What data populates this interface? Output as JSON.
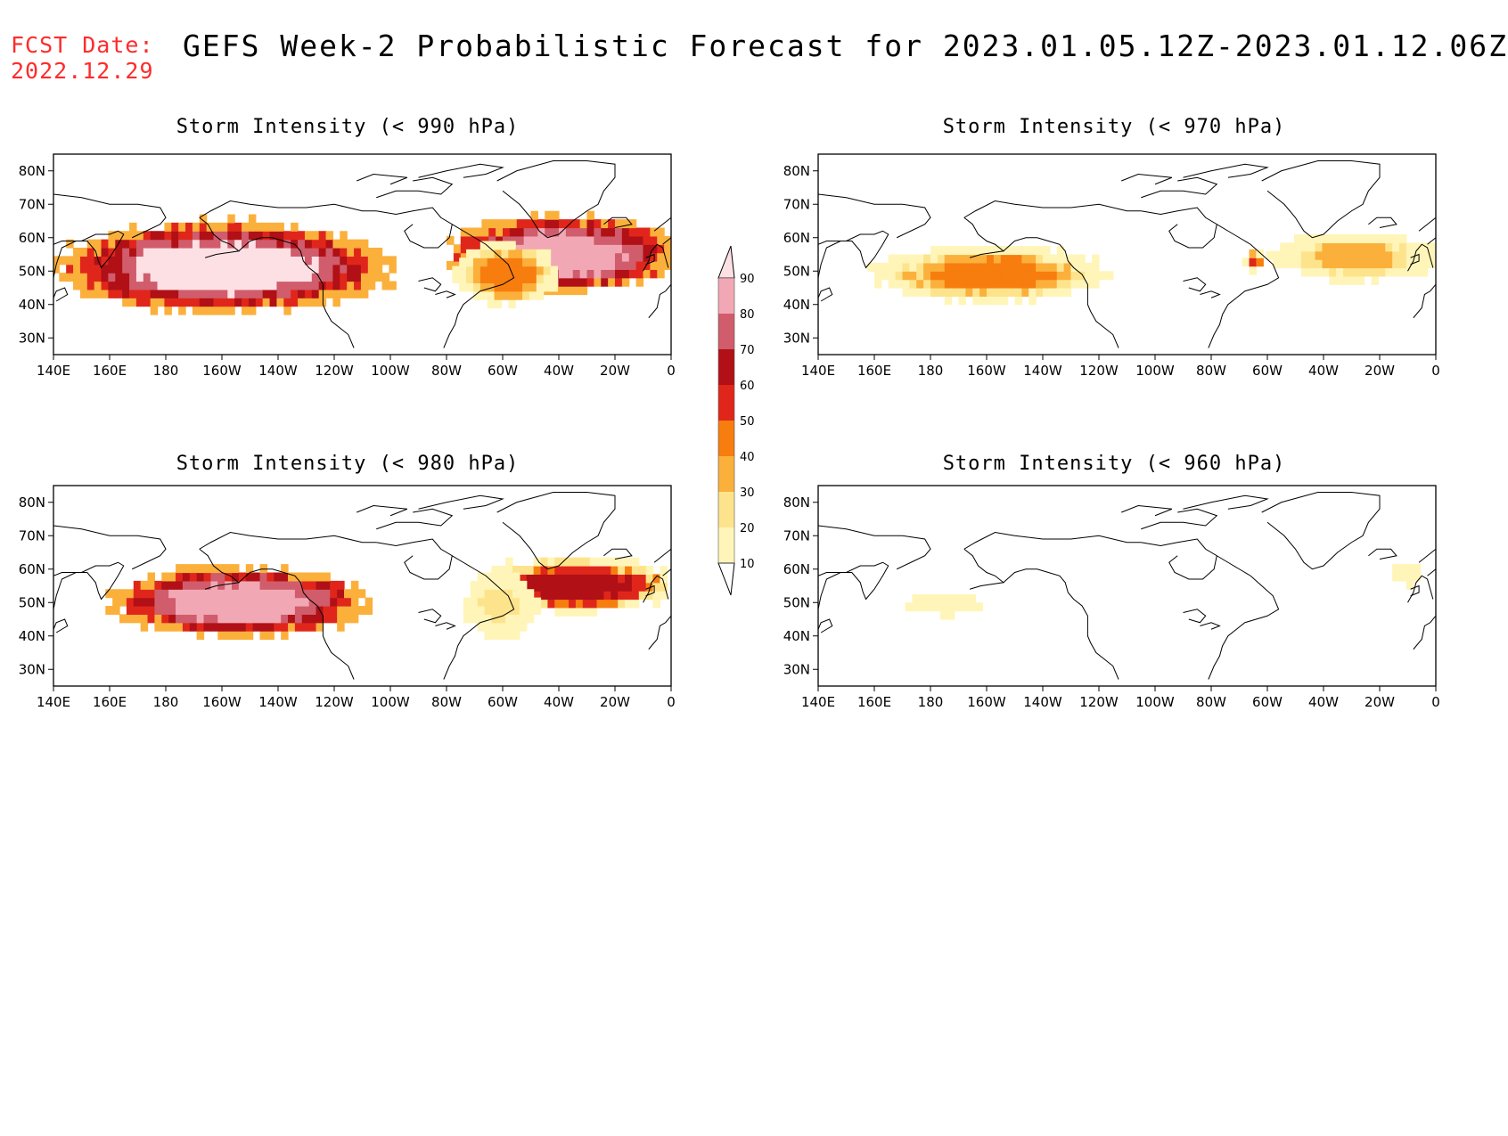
{
  "header": {
    "fcst_label": "FCST Date:",
    "fcst_date": "2022.12.29",
    "title": "GEFS Week-2 Probabilistic Forecast for 2023.01.05.12Z-2023.01.12.06Z"
  },
  "axes": {
    "lat_labels": [
      "80N",
      "70N",
      "60N",
      "50N",
      "40N",
      "30N"
    ],
    "lon_labels": [
      "140E",
      "160E",
      "180",
      "160W",
      "140W",
      "120W",
      "100W",
      "80W",
      "60W",
      "40W",
      "20W",
      "0"
    ]
  },
  "panels": [
    {
      "id": "p990",
      "title": "Storm Intensity (< 990 hPa)"
    },
    {
      "id": "p970",
      "title": "Storm Intensity (< 970 hPa)"
    },
    {
      "id": "p980",
      "title": "Storm Intensity (< 980 hPa)"
    },
    {
      "id": "p960",
      "title": "Storm Intensity (< 960 hPa)"
    }
  ],
  "colorbar": {
    "levels": [
      "10",
      "20",
      "30",
      "40",
      "50",
      "60",
      "70",
      "80",
      "90"
    ],
    "colors": [
      "#ffffff",
      "#fff5b8",
      "#fde48c",
      "#fbb03b",
      "#f77d0f",
      "#e0261b",
      "#b01016",
      "#d05c6c",
      "#f2a8b4",
      "#fde0e4"
    ]
  },
  "colors": {
    "title_red": "#ff2b2b",
    "map_line": "#000000"
  }
}
